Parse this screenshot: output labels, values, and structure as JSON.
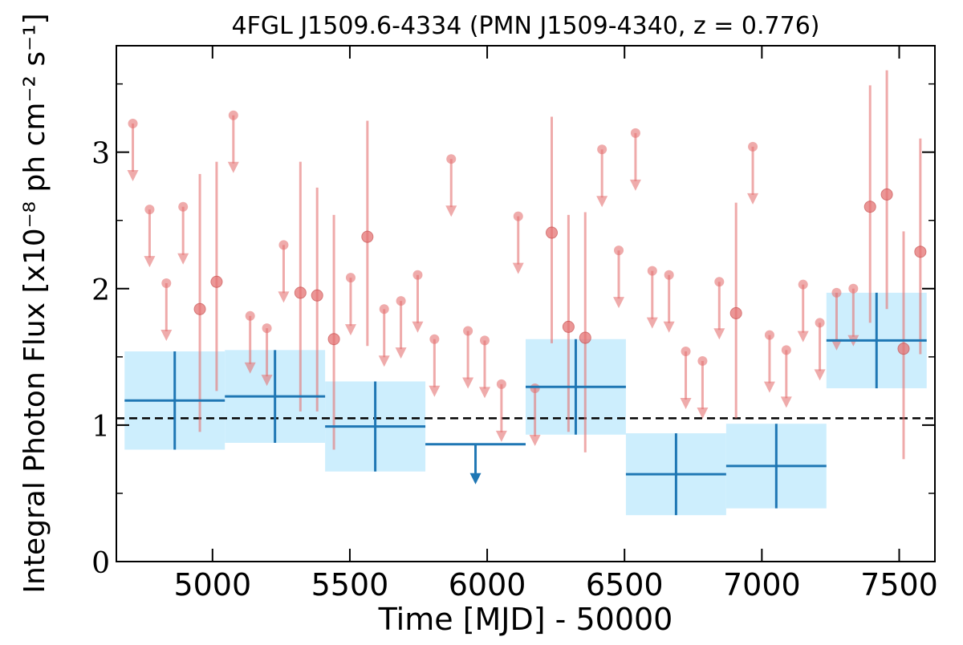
{
  "chart_data": {
    "type": "scatter",
    "title": "4FGL J1509.6-4334 (PMN J1509-4340, z = 0.776)",
    "x_label": "Time [MJD] - 50000",
    "y_label": "Integral Photon Flux [x10⁻⁸ ph cm⁻² s⁻¹]",
    "xlim": [
      4650,
      7630
    ],
    "ylim": [
      0,
      3.78
    ],
    "xticks": [
      5000,
      5500,
      6000,
      6500,
      7000,
      7500
    ],
    "yticks": [
      0,
      1,
      2,
      3
    ],
    "yticks_minor": [
      0.5,
      1.5,
      2.5,
      3.5
    ],
    "average": 1.05,
    "series": [
      {
        "color": "#e57373",
        "x": [
          4710,
          4771,
          4832,
          4893,
          4954,
          5015,
          5076,
          5137,
          5198,
          5259,
          5320,
          5381,
          5442,
          5503,
          5564,
          5625,
          5686,
          5747,
          5808,
          5869,
          5930,
          5991,
          6052,
          6113,
          6174,
          6235,
          6296,
          6357,
          6418,
          6479,
          6540,
          6601,
          6662,
          6723,
          6784,
          6845,
          6906,
          6967,
          7028,
          7089,
          7150,
          7211,
          7272,
          7333,
          7394,
          7455,
          7516,
          7577
        ],
        "values": [
          3.21,
          2.58,
          2.04,
          2.6,
          1.85,
          2.05,
          3.27,
          1.8,
          1.71,
          2.32,
          1.97,
          1.95,
          1.63,
          2.08,
          2.38,
          1.85,
          1.91,
          2.1,
          1.63,
          2.95,
          1.69,
          1.62,
          1.3,
          2.53,
          1.27,
          2.41,
          1.72,
          1.64,
          3.02,
          2.28,
          3.14,
          2.13,
          2.1,
          1.54,
          1.47,
          2.05,
          1.82,
          3.04,
          1.66,
          1.55,
          2.03,
          1.75,
          1.97,
          2.0,
          2.6,
          2.69,
          1.56,
          2.27
        ],
        "err_minus": [
          null,
          null,
          null,
          null,
          0.9,
          0.8,
          null,
          null,
          null,
          null,
          0.87,
          0.85,
          0.81,
          null,
          0.8,
          null,
          null,
          null,
          null,
          null,
          null,
          null,
          null,
          null,
          null,
          0.81,
          0.77,
          0.84,
          null,
          null,
          null,
          null,
          null,
          null,
          null,
          null,
          0.77,
          null,
          null,
          null,
          null,
          null,
          null,
          null,
          0.85,
          0.84,
          0.81,
          0.75
        ],
        "err_plus": [
          null,
          null,
          null,
          null,
          0.99,
          0.88,
          null,
          null,
          null,
          null,
          0.96,
          0.79,
          0.91,
          null,
          0.85,
          null,
          null,
          null,
          null,
          null,
          null,
          null,
          null,
          null,
          null,
          0.85,
          0.82,
          0.92,
          null,
          null,
          null,
          null,
          null,
          null,
          null,
          null,
          0.81,
          null,
          null,
          null,
          null,
          null,
          null,
          null,
          0.89,
          0.91,
          0.86,
          0.83
        ],
        "upper_limits": [
          true,
          true,
          true,
          true,
          false,
          false,
          true,
          true,
          true,
          true,
          false,
          false,
          false,
          true,
          false,
          true,
          true,
          true,
          true,
          true,
          true,
          true,
          true,
          true,
          true,
          false,
          false,
          false,
          true,
          true,
          true,
          true,
          true,
          true,
          true,
          true,
          false,
          true,
          true,
          true,
          true,
          true,
          true,
          true,
          false,
          false,
          false,
          false
        ]
      },
      {
        "color": "#1f77b4",
        "box_color": "#cdeefd",
        "x": [
          4862.5,
          5227.5,
          5592.5,
          5957.5,
          6322.5,
          6687.5,
          7052.5,
          7417.5
        ],
        "xerr": [
          182.5,
          182.5,
          182.5,
          182.5,
          182.5,
          182.5,
          182.5,
          182.5
        ],
        "values": [
          1.18,
          1.21,
          0.99,
          0.86,
          1.28,
          0.64,
          0.7,
          1.62
        ],
        "err": [
          0.36,
          0.34,
          0.33,
          null,
          0.35,
          0.3,
          0.31,
          0.35
        ],
        "upper_limits": [
          false,
          false,
          false,
          true,
          false,
          false,
          false,
          false
        ]
      }
    ]
  }
}
